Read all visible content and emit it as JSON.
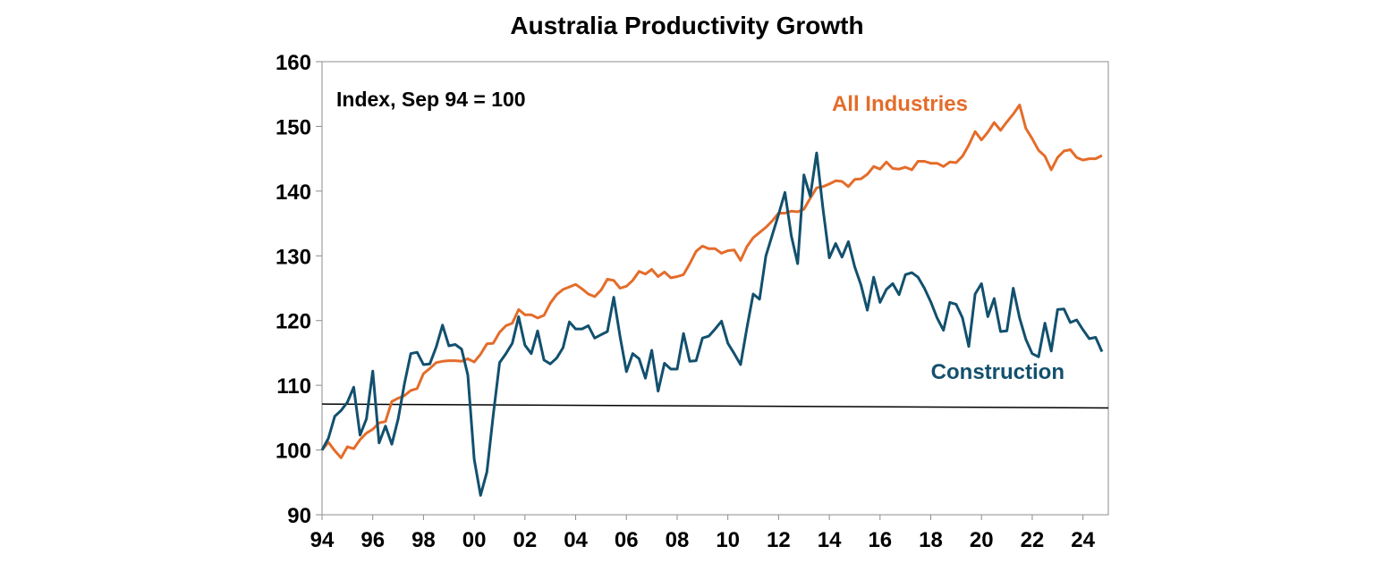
{
  "chart_data": {
    "type": "line",
    "title": "Australia Productivity Growth",
    "annotation": "Index, Sep 94 = 100",
    "x_axis": {
      "ticks": [
        "94",
        "96",
        "98",
        "00",
        "02",
        "04",
        "06",
        "08",
        "10",
        "12",
        "14",
        "16",
        "18",
        "20",
        "22",
        "24"
      ],
      "tick_years": [
        1994,
        1996,
        1998,
        2000,
        2002,
        2004,
        2006,
        2008,
        2010,
        2012,
        2014,
        2016,
        2018,
        2020,
        2022,
        2024
      ],
      "range": [
        1994,
        2025
      ]
    },
    "y_axis": {
      "ticks": [
        "90",
        "100",
        "110",
        "120",
        "130",
        "140",
        "150",
        "160"
      ],
      "tick_values": [
        90,
        100,
        110,
        120,
        130,
        140,
        150,
        160
      ],
      "range": [
        90,
        160
      ]
    },
    "grid": false,
    "series": [
      {
        "name": "All Industries",
        "color": "#E46C2A",
        "x": [
          1994.0,
          1994.25,
          1994.5,
          1994.75,
          1995.0,
          1995.25,
          1995.5,
          1995.75,
          1996.0,
          1996.25,
          1996.5,
          1996.75,
          1997.0,
          1997.25,
          1997.5,
          1997.75,
          1998.0,
          1998.25,
          1998.5,
          1998.75,
          1999.0,
          1999.25,
          1999.5,
          1999.75,
          2000.0,
          2000.25,
          2000.5,
          2000.75,
          2001.0,
          2001.25,
          2001.5,
          2001.75,
          2002.0,
          2002.25,
          2002.5,
          2002.75,
          2003.0,
          2003.25,
          2003.5,
          2003.75,
          2004.0,
          2004.25,
          2004.5,
          2004.75,
          2005.0,
          2005.25,
          2005.5,
          2005.75,
          2006.0,
          2006.25,
          2006.5,
          2006.75,
          2007.0,
          2007.25,
          2007.5,
          2007.75,
          2008.0,
          2008.25,
          2008.5,
          2008.75,
          2009.0,
          2009.25,
          2009.5,
          2009.75,
          2010.0,
          2010.25,
          2010.5,
          2010.75,
          2011.0,
          2011.25,
          2011.5,
          2011.75,
          2012.0,
          2012.25,
          2012.5,
          2012.75,
          2013.0,
          2013.25,
          2013.5,
          2013.75,
          2014.0,
          2014.25,
          2014.5,
          2014.75,
          2015.0,
          2015.25,
          2015.5,
          2015.75,
          2016.0,
          2016.25,
          2016.5,
          2016.75,
          2017.0,
          2017.25,
          2017.5,
          2017.75,
          2018.0,
          2018.25,
          2018.5,
          2018.75,
          2019.0,
          2019.25,
          2019.5,
          2019.75,
          2020.0,
          2020.25,
          2020.5,
          2020.75,
          2021.0,
          2021.25,
          2021.5,
          2021.75,
          2022.0,
          2022.25,
          2022.5,
          2022.75,
          2023.0,
          2023.25,
          2023.5,
          2023.75,
          2024.0,
          2024.25,
          2024.5,
          2024.75
        ],
        "values": [
          100.0,
          101.2,
          99.9,
          98.8,
          100.5,
          100.2,
          101.6,
          102.6,
          103.2,
          104.2,
          104.4,
          107.5,
          108.0,
          108.4,
          109.2,
          109.5,
          111.8,
          112.6,
          113.5,
          113.7,
          113.8,
          113.8,
          113.7,
          114.1,
          113.6,
          114.8,
          116.4,
          116.5,
          118.2,
          119.2,
          119.6,
          121.7,
          120.9,
          120.9,
          120.4,
          120.8,
          122.7,
          124.0,
          124.8,
          125.2,
          125.6,
          124.9,
          124.1,
          123.7,
          124.7,
          126.4,
          126.2,
          125.0,
          125.3,
          126.2,
          127.6,
          127.2,
          127.9,
          126.8,
          127.5,
          126.6,
          126.8,
          127.1,
          128.8,
          130.7,
          131.5,
          131.1,
          131.1,
          130.4,
          130.8,
          130.9,
          129.3,
          131.4,
          132.8,
          133.6,
          134.4,
          135.4,
          136.6,
          136.6,
          136.9,
          136.8,
          137.2,
          138.9,
          140.5,
          140.7,
          141.1,
          141.6,
          141.5,
          140.7,
          141.8,
          141.9,
          142.6,
          143.8,
          143.4,
          144.5,
          143.5,
          143.4,
          143.7,
          143.3,
          144.6,
          144.6,
          144.3,
          144.3,
          143.8,
          144.5,
          144.4,
          145.4,
          147.1,
          149.2,
          147.9,
          149.1,
          150.6,
          149.4,
          150.7,
          151.9,
          153.3,
          149.7,
          148.1,
          146.3,
          145.4,
          143.3,
          145.2,
          146.2,
          146.4,
          145.2,
          144.8,
          145.0,
          145.0,
          145.5
        ]
      },
      {
        "name": "Construction",
        "color": "#12506E",
        "x": [
          1994.0,
          1994.25,
          1994.5,
          1994.75,
          1995.0,
          1995.25,
          1995.5,
          1995.75,
          1996.0,
          1996.25,
          1996.5,
          1996.75,
          1997.0,
          1997.25,
          1997.5,
          1997.75,
          1998.0,
          1998.25,
          1998.5,
          1998.75,
          1999.0,
          1999.25,
          1999.5,
          1999.75,
          2000.0,
          2000.25,
          2000.5,
          2000.75,
          2001.0,
          2001.25,
          2001.5,
          2001.75,
          2002.0,
          2002.25,
          2002.5,
          2002.75,
          2003.0,
          2003.25,
          2003.5,
          2003.75,
          2004.0,
          2004.25,
          2004.5,
          2004.75,
          2005.0,
          2005.25,
          2005.5,
          2005.75,
          2006.0,
          2006.25,
          2006.5,
          2006.75,
          2007.0,
          2007.25,
          2007.5,
          2007.75,
          2008.0,
          2008.25,
          2008.5,
          2008.75,
          2009.0,
          2009.25,
          2009.5,
          2009.75,
          2010.0,
          2010.25,
          2010.5,
          2010.75,
          2011.0,
          2011.25,
          2011.5,
          2011.75,
          2012.0,
          2012.25,
          2012.5,
          2012.75,
          2013.0,
          2013.25,
          2013.5,
          2013.75,
          2014.0,
          2014.25,
          2014.5,
          2014.75,
          2015.0,
          2015.25,
          2015.5,
          2015.75,
          2016.0,
          2016.25,
          2016.5,
          2016.75,
          2017.0,
          2017.25,
          2017.5,
          2017.75,
          2018.0,
          2018.25,
          2018.5,
          2018.75,
          2019.0,
          2019.25,
          2019.5,
          2019.75,
          2020.0,
          2020.25,
          2020.5,
          2020.75,
          2021.0,
          2021.25,
          2021.5,
          2021.75,
          2022.0,
          2022.25,
          2022.5,
          2022.75,
          2023.0,
          2023.25,
          2023.5,
          2023.75,
          2024.0,
          2024.25,
          2024.5,
          2024.75
        ],
        "values": [
          100.0,
          101.8,
          105.2,
          106.1,
          107.4,
          109.7,
          102.3,
          104.8,
          112.2,
          101.1,
          103.7,
          100.9,
          104.8,
          110.3,
          114.9,
          115.1,
          113.2,
          113.3,
          115.9,
          119.3,
          116.1,
          116.3,
          115.6,
          111.6,
          98.6,
          93.0,
          96.6,
          105.4,
          113.5,
          114.9,
          116.5,
          120.6,
          116.2,
          114.9,
          118.4,
          113.9,
          113.3,
          114.2,
          115.8,
          119.8,
          118.7,
          118.7,
          119.2,
          117.3,
          117.8,
          118.3,
          123.6,
          117.5,
          112.1,
          114.9,
          114.1,
          111.1,
          115.4,
          109.1,
          113.4,
          112.5,
          112.5,
          118.0,
          113.7,
          113.8,
          117.3,
          117.6,
          118.7,
          119.9,
          116.5,
          114.9,
          113.2,
          118.8,
          124.1,
          123.3,
          130.0,
          133.2,
          136.4,
          139.8,
          133.1,
          128.8,
          142.5,
          139.2,
          145.9,
          137.3,
          129.7,
          131.9,
          129.8,
          132.2,
          128.3,
          125.5,
          121.6,
          126.7,
          122.8,
          124.8,
          125.7,
          124.0,
          127.1,
          127.4,
          126.7,
          125.0,
          122.9,
          120.4,
          118.5,
          122.8,
          122.5,
          120.4,
          116.0,
          124.1,
          125.7,
          120.6,
          123.4,
          118.3,
          118.4,
          125.0,
          120.4,
          117.1,
          114.9,
          114.4,
          119.6,
          115.3,
          121.7,
          121.8,
          119.7,
          120.1,
          118.6,
          117.2,
          117.4,
          115.2
        ]
      }
    ],
    "reference_line": {
      "from": [
        1994.0,
        107.1
      ],
      "to": [
        2025.0,
        106.5
      ],
      "color": "#000000"
    }
  }
}
